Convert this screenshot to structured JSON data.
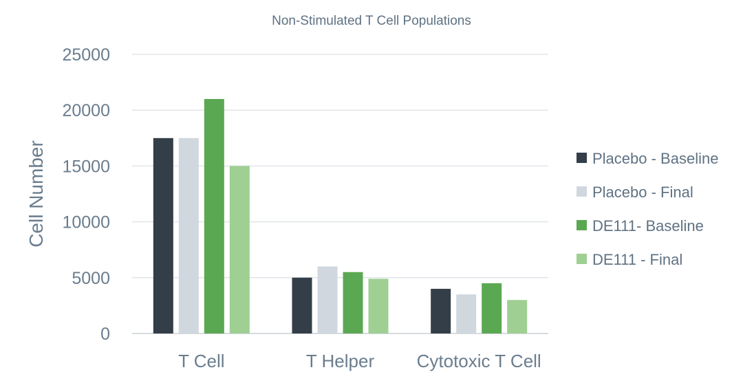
{
  "chart_data": {
    "type": "bar",
    "title": "Non-Stimulated T Cell Populations",
    "xlabel": "",
    "ylabel": "Cell Number",
    "ylim": [
      0,
      25000
    ],
    "yticks": [
      0,
      5000,
      10000,
      15000,
      20000,
      25000
    ],
    "grid": true,
    "legend_position": "right",
    "categories": [
      "T Cell",
      "T Helper",
      "Cytotoxic T Cell"
    ],
    "series": [
      {
        "name": "Placebo - Baseline",
        "color": "#343e48",
        "values": [
          17500,
          5000,
          4000
        ]
      },
      {
        "name": "Placebo - Final",
        "color": "#d0d7df",
        "values": [
          17500,
          6000,
          3500
        ]
      },
      {
        "name": "DE111- Baseline",
        "color": "#5ba852",
        "values": [
          21000,
          5500,
          4500
        ]
      },
      {
        "name": "DE111 - Final",
        "color": "#9fcf93",
        "values": [
          15000,
          4900,
          3000
        ]
      }
    ]
  }
}
